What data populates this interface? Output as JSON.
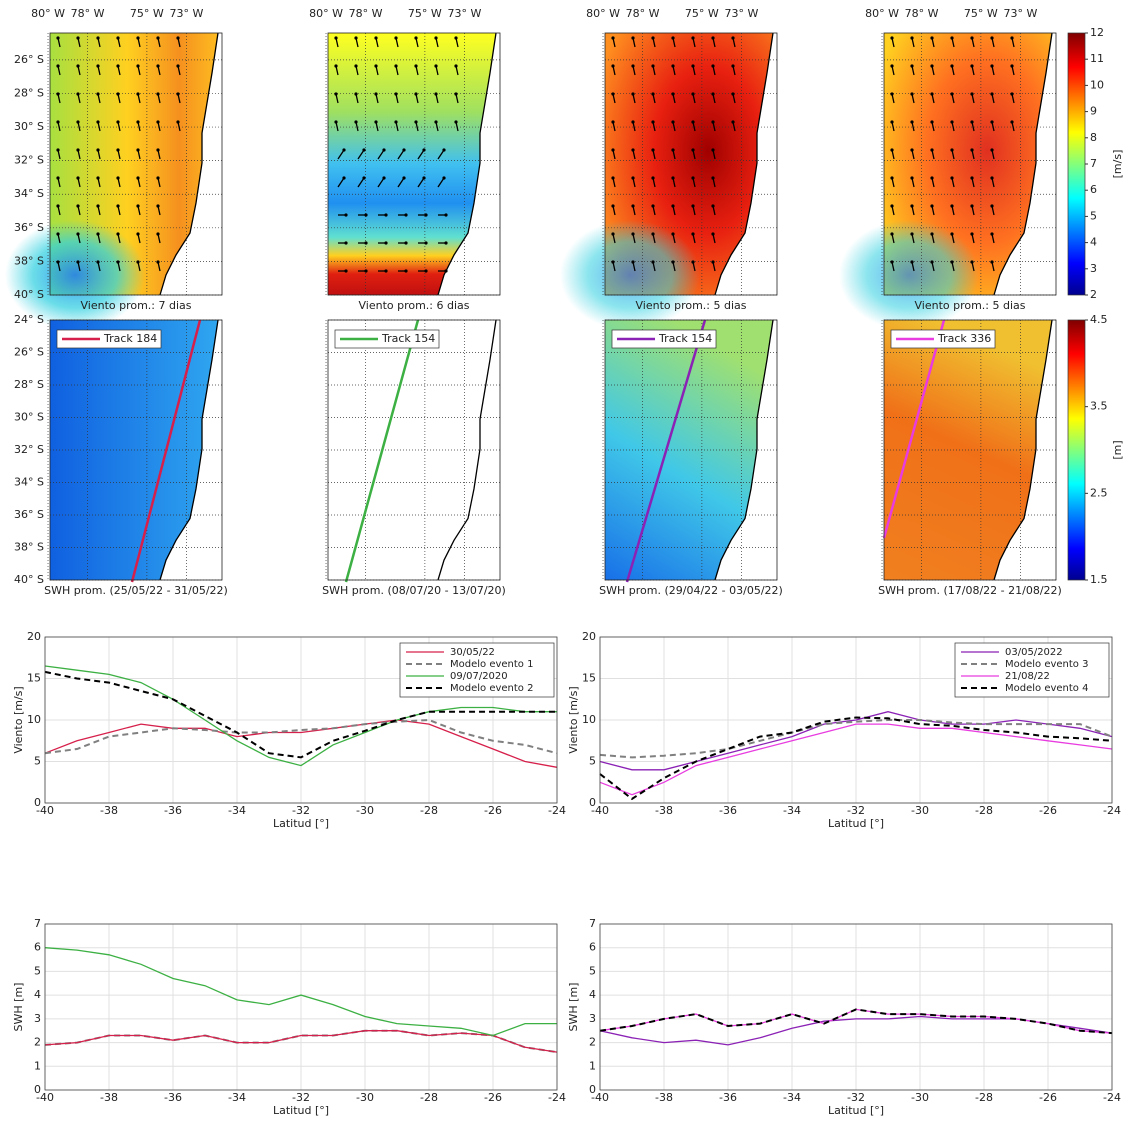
{
  "maps": {
    "lon_lim": [
      -79.9,
      -71.2
    ],
    "lat_lim_wind": [
      -40,
      -24.4
    ],
    "lat_lim_swh": [
      -40,
      -24
    ],
    "lon_ticks": [
      {
        "value": -80,
        "label": "80° W"
      },
      {
        "value": -78,
        "label": "78° W"
      },
      {
        "value": -75,
        "label": "75° W"
      },
      {
        "value": -73,
        "label": "73° W"
      }
    ],
    "lat_ticks_wind": [
      {
        "value": -26,
        "label": "26° S"
      },
      {
        "value": -28,
        "label": "28° S"
      },
      {
        "value": -30,
        "label": "30° S"
      },
      {
        "value": -32,
        "label": "32° S"
      },
      {
        "value": -34,
        "label": "34° S"
      },
      {
        "value": -36,
        "label": "36° S"
      },
      {
        "value": -38,
        "label": "38° S"
      },
      {
        "value": -40,
        "label": "40° S"
      }
    ],
    "lat_ticks_swh": [
      {
        "value": -24,
        "label": "24° S"
      },
      {
        "value": -26,
        "label": "26° S"
      },
      {
        "value": -28,
        "label": "28° S"
      },
      {
        "value": -30,
        "label": "30° S"
      },
      {
        "value": -32,
        "label": "32° S"
      },
      {
        "value": -34,
        "label": "34° S"
      },
      {
        "value": -36,
        "label": "36° S"
      },
      {
        "value": -38,
        "label": "38° S"
      },
      {
        "value": -40,
        "label": "40° S"
      }
    ],
    "wind_panels": [
      {
        "caption": "Viento prom.: 7 dias"
      },
      {
        "caption": "Viento prom.: 6 dias"
      },
      {
        "caption": "Viento prom.: 5 dias"
      },
      {
        "caption": "Viento prom.: 5 dias"
      }
    ],
    "swh_panels": [
      {
        "caption": "SWH prom. (25/05/22 - 31/05/22)",
        "track": "Track 184",
        "color": "#d6204b"
      },
      {
        "caption": "SWH prom. (08/07/20 - 13/07/20)",
        "track": "Track 154",
        "color": "#3cb043"
      },
      {
        "caption": "SWH prom. (29/04/22 - 03/05/22)",
        "track": "Track 154",
        "color": "#8b22b5"
      },
      {
        "caption": "SWH prom. (17/08/22 - 21/08/22)",
        "track": "Track 336",
        "color": "#e83ce0"
      }
    ],
    "wind_colorbar": {
      "label": "[m/s]",
      "lim": [
        2,
        12
      ],
      "ticks": [
        2,
        3,
        4,
        5,
        6,
        7,
        8,
        9,
        10,
        11,
        12
      ]
    },
    "swh_colorbar": {
      "label": "[m]",
      "lim": [
        1.5,
        4.5
      ],
      "ticks": [
        1.5,
        2.5,
        3.5,
        4.5
      ]
    }
  },
  "chart_data": [
    {
      "type": "line",
      "xlabel": "Latitud [°]",
      "ylabel": "Viento [m/s]",
      "grid": true,
      "legend": "upper right",
      "x": [
        -40,
        -39,
        -38,
        -37,
        -36,
        -35,
        -34,
        -33,
        -32,
        -31,
        -30,
        -29,
        -28,
        -27,
        -26,
        -25,
        -24
      ],
      "xlim": [
        -40,
        -24
      ],
      "xticks": [
        -40,
        -38,
        -36,
        -34,
        -32,
        -30,
        -28,
        -26,
        -24
      ],
      "ylim": [
        0,
        20
      ],
      "yticks": [
        0,
        5,
        10,
        15,
        20
      ],
      "series": [
        {
          "name": "30/05/22",
          "color": "#d6204b",
          "dashed": false,
          "values": [
            6,
            7.5,
            8.5,
            9.5,
            9,
            9,
            8,
            8.5,
            8.5,
            9,
            9.5,
            10,
            9.5,
            8,
            6.5,
            5,
            4.3
          ]
        },
        {
          "name": "Modelo evento 1",
          "color": "#808080",
          "dashed": true,
          "values": [
            6,
            6.5,
            8,
            8.5,
            9,
            8.8,
            8.5,
            8.5,
            8.8,
            9,
            9.5,
            9.8,
            10,
            8.5,
            7.5,
            7,
            6
          ]
        },
        {
          "name": "09/07/2020",
          "color": "#3cb043",
          "dashed": false,
          "values": [
            16.5,
            16,
            15.5,
            14.5,
            12.5,
            10,
            7.5,
            5.5,
            4.5,
            7,
            8.5,
            10,
            11,
            11.5,
            11.5,
            11,
            11
          ]
        },
        {
          "name": "Modelo evento 2",
          "color": "#000000",
          "dashed": true,
          "values": [
            15.8,
            15,
            14.5,
            13.5,
            12.5,
            10.5,
            8.5,
            6,
            5.5,
            7.5,
            8.7,
            10,
            11,
            11,
            11,
            11,
            11
          ]
        }
      ]
    },
    {
      "type": "line",
      "xlabel": "Latitud [°]",
      "ylabel": "Viento [m/s]",
      "grid": true,
      "legend": "upper right",
      "x": [
        -40,
        -39,
        -38,
        -37,
        -36,
        -35,
        -34,
        -33,
        -32,
        -31,
        -30,
        -29,
        -28,
        -27,
        -26,
        -25,
        -24
      ],
      "xlim": [
        -40,
        -24
      ],
      "xticks": [
        -40,
        -38,
        -36,
        -34,
        -32,
        -30,
        -28,
        -26,
        -24
      ],
      "ylim": [
        0,
        20
      ],
      "yticks": [
        0,
        5,
        10,
        15,
        20
      ],
      "series": [
        {
          "name": "03/05/2022",
          "color": "#8b22b5",
          "dashed": false,
          "values": [
            5,
            4,
            4,
            5,
            6,
            7,
            8,
            9.5,
            10,
            11,
            10,
            9.5,
            9.5,
            10,
            9.5,
            9,
            8
          ]
        },
        {
          "name": "Modelo evento 3",
          "color": "#808080",
          "dashed": true,
          "values": [
            5.8,
            5.5,
            5.7,
            6,
            6.5,
            7.5,
            8.5,
            9.5,
            9.8,
            10,
            10,
            9.7,
            9.5,
            9.5,
            9.5,
            9.5,
            8
          ]
        },
        {
          "name": "21/08/22",
          "color": "#e83ce0",
          "dashed": false,
          "values": [
            2.5,
            1,
            2.5,
            4.5,
            5.5,
            6.5,
            7.5,
            8.5,
            9.5,
            9.5,
            9,
            9,
            8.5,
            8,
            7.5,
            7,
            6.5
          ]
        },
        {
          "name": "Modelo evento 4",
          "color": "#000000",
          "dashed": true,
          "values": [
            3.5,
            0.5,
            3,
            5,
            6.5,
            8,
            8.5,
            9.8,
            10.3,
            10.2,
            9.5,
            9.3,
            8.8,
            8.5,
            8,
            7.8,
            7.5
          ]
        }
      ]
    },
    {
      "type": "line",
      "xlabel": "Latitud [°]",
      "ylabel": "SWH [m]",
      "grid": true,
      "x": [
        -40,
        -39,
        -38,
        -37,
        -36,
        -35,
        -34,
        -33,
        -32,
        -31,
        -30,
        -29,
        -28,
        -27,
        -26,
        -25,
        -24
      ],
      "xlim": [
        -40,
        -24
      ],
      "xticks": [
        -40,
        -38,
        -36,
        -34,
        -32,
        -30,
        -28,
        -26,
        -24
      ],
      "ylim": [
        0,
        7
      ],
      "yticks": [
        0,
        1,
        2,
        3,
        4,
        5,
        6,
        7
      ],
      "series": [
        {
          "color": "#808080",
          "dashed": true,
          "values": [
            1.9,
            2,
            2.3,
            2.3,
            2.1,
            2.3,
            2,
            2,
            2.3,
            2.3,
            2.5,
            2.5,
            2.3,
            2.4,
            2.3,
            1.8,
            1.6
          ]
        },
        {
          "color": "#d6204b",
          "dashed": false,
          "values": [
            1.9,
            2,
            2.3,
            2.3,
            2.1,
            2.3,
            2,
            2,
            2.3,
            2.3,
            2.5,
            2.5,
            2.3,
            2.4,
            2.3,
            1.8,
            1.6
          ]
        },
        {
          "color": "#3cb043",
          "dashed": false,
          "values": [
            6,
            5.9,
            5.7,
            5.3,
            4.7,
            4.4,
            3.8,
            3.6,
            4,
            3.6,
            3.1,
            2.8,
            2.7,
            2.6,
            2.3,
            2.8,
            2.8
          ]
        }
      ]
    },
    {
      "type": "line",
      "xlabel": "Latitud [°]",
      "ylabel": "SWH [m]",
      "grid": true,
      "x": [
        -40,
        -39,
        -38,
        -37,
        -36,
        -35,
        -34,
        -33,
        -32,
        -31,
        -30,
        -29,
        -28,
        -27,
        -26,
        -25,
        -24
      ],
      "xlim": [
        -40,
        -24
      ],
      "xticks": [
        -40,
        -38,
        -36,
        -34,
        -32,
        -30,
        -28,
        -26,
        -24
      ],
      "ylim": [
        0,
        7
      ],
      "yticks": [
        0,
        1,
        2,
        3,
        4,
        5,
        6,
        7
      ],
      "series": [
        {
          "color": "#8b22b5",
          "dashed": false,
          "values": [
            2.5,
            2.2,
            2,
            2.1,
            1.9,
            2.2,
            2.6,
            2.9,
            3,
            3,
            3.1,
            3,
            3,
            3,
            2.8,
            2.6,
            2.4
          ]
        },
        {
          "color": "#e83ce0",
          "dashed": false,
          "values": [
            2.5,
            2.7,
            3,
            3.2,
            2.7,
            2.8,
            3.2,
            2.8,
            3.4,
            3.2,
            3.2,
            3.1,
            3.1,
            3,
            2.8,
            2.5,
            2.4
          ]
        },
        {
          "color": "#000000",
          "dashed": true,
          "values": [
            2.5,
            2.7,
            3,
            3.2,
            2.7,
            2.8,
            3.2,
            2.8,
            3.4,
            3.2,
            3.2,
            3.1,
            3.1,
            3,
            2.8,
            2.5,
            2.4
          ]
        }
      ]
    }
  ]
}
